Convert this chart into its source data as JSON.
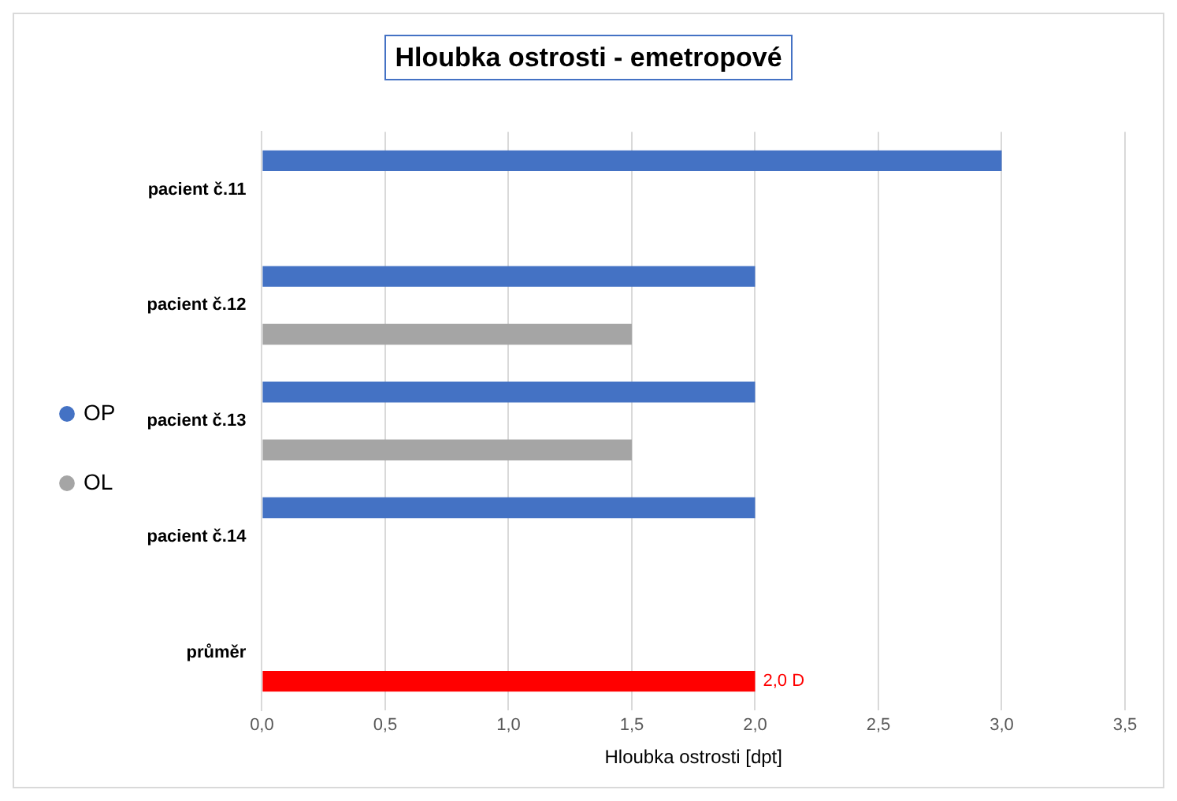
{
  "chart_data": {
    "type": "bar",
    "orientation": "horizontal",
    "title": "Hloubka ostrosti - emetropové",
    "xlabel": "Hloubka ostrosti [dpt]",
    "categories": [
      "pacient č.11",
      "pacient č.12",
      "pacient č.13",
      "pacient č.14",
      "průměr"
    ],
    "series": [
      {
        "name": "OP",
        "color": "#4472c4",
        "values": [
          3,
          2,
          2,
          2,
          null
        ]
      },
      {
        "name": "OL",
        "color": "#a5a5a5",
        "colors": [
          "#a5a5a5",
          "#a5a5a5",
          "#a5a5a5",
          "#a5a5a5",
          "#ff0000"
        ],
        "values": [
          null,
          1.5,
          1.5,
          null,
          2.0
        ],
        "value_labels": [
          null,
          null,
          null,
          null,
          "2,0 D"
        ]
      }
    ],
    "xlim": [
      0,
      3.5
    ],
    "xticks": [
      {
        "value": 0,
        "label": "0,0"
      },
      {
        "value": 0.5,
        "label": "0,5"
      },
      {
        "value": 1,
        "label": "1,0"
      },
      {
        "value": 1.5,
        "label": "1,5"
      },
      {
        "value": 2,
        "label": "2,0"
      },
      {
        "value": 2.5,
        "label": "2,5"
      },
      {
        "value": 3,
        "label": "3,0"
      },
      {
        "value": 3.5,
        "label": "3,5"
      }
    ],
    "grid": "x",
    "legend": "left"
  }
}
